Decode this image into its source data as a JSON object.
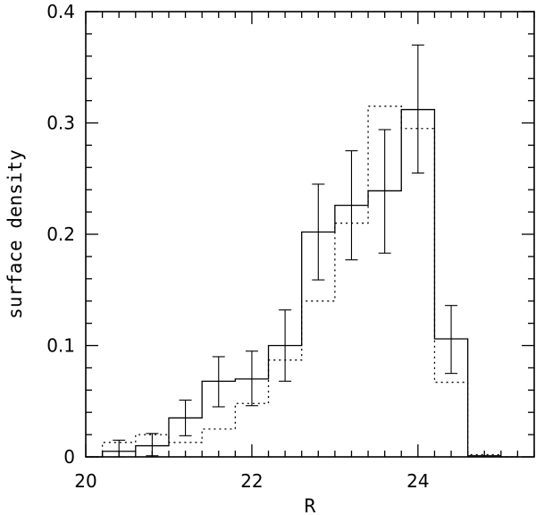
{
  "chart_data": {
    "type": "histogram",
    "xlabel": "R",
    "ylabel": "surface density",
    "xlim": [
      20,
      25.4
    ],
    "ylim": [
      0,
      0.4
    ],
    "x_ticks": [
      "20",
      "22",
      "24"
    ],
    "y_ticks": [
      "0",
      "0.1",
      "0.2",
      "0.3",
      "0.4"
    ],
    "grid": false,
    "bin_edges": [
      20.2,
      20.6,
      21.0,
      21.4,
      21.8,
      22.2,
      22.6,
      23.0,
      23.4,
      23.8,
      24.2,
      24.6,
      25.0
    ],
    "series": [
      {
        "style": "solid",
        "values": [
          0.005,
          0.01,
          0.035,
          0.068,
          0.07,
          0.1,
          0.202,
          0.226,
          0.239,
          0.312,
          0.106,
          0.001
        ],
        "error_bars": [
          [
            0.0,
            0.015
          ],
          [
            0.001,
            0.021
          ],
          [
            0.019,
            0.051
          ],
          [
            0.045,
            0.09
          ],
          [
            0.046,
            0.095
          ],
          [
            0.068,
            0.132
          ],
          [
            0.159,
            0.245
          ],
          [
            0.177,
            0.275
          ],
          [
            0.183,
            0.294
          ],
          [
            0.255,
            0.37
          ],
          [
            0.075,
            0.136
          ],
          null
        ]
      },
      {
        "style": "dotted",
        "values": [
          0.013,
          0.02,
          0.013,
          0.025,
          0.048,
          0.087,
          0.14,
          0.21,
          0.315,
          0.295,
          0.067,
          0.002
        ]
      }
    ]
  }
}
